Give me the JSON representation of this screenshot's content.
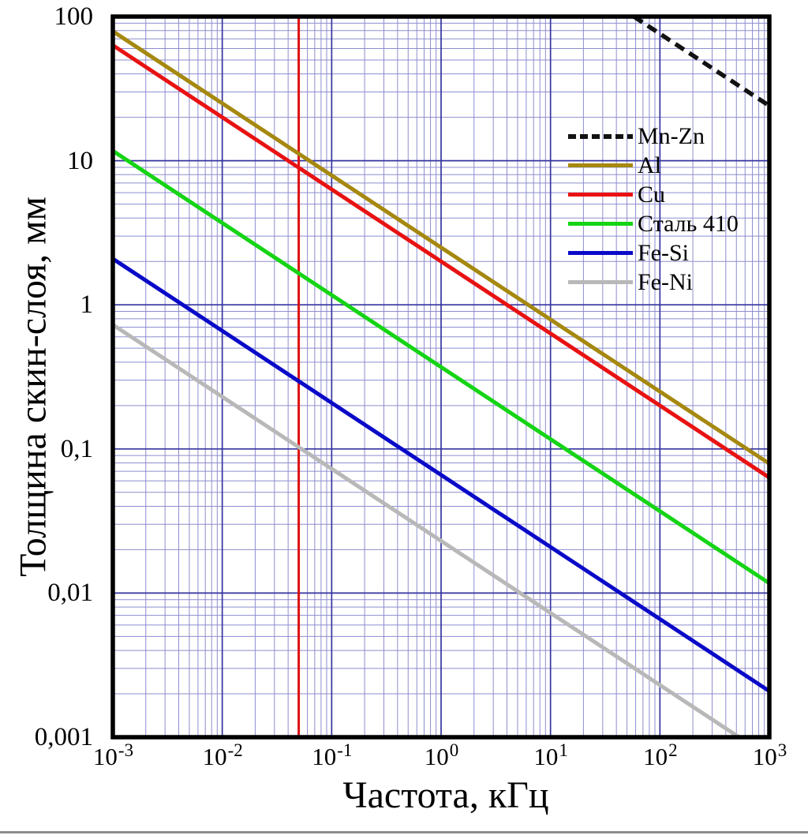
{
  "figure": {
    "background": "#ffffff",
    "x_axis": {
      "title": "Частота, кГц",
      "scale": "log",
      "ticks": [
        {
          "base": "10",
          "exp": "-3",
          "value": 0.001
        },
        {
          "base": "10",
          "exp": "-2",
          "value": 0.01
        },
        {
          "base": "10",
          "exp": "-1",
          "value": 0.1
        },
        {
          "base": "10",
          "exp": "0",
          "value": 1
        },
        {
          "base": "10",
          "exp": "1",
          "value": 10
        },
        {
          "base": "10",
          "exp": "2",
          "value": 100
        },
        {
          "base": "10",
          "exp": "3",
          "value": 1000
        }
      ]
    },
    "y_axis": {
      "title": "Толщина скин-слоя, мм",
      "scale": "log",
      "ticks": [
        {
          "label": "100",
          "value": 100
        },
        {
          "label": "10",
          "value": 10
        },
        {
          "label": "1",
          "value": 1
        },
        {
          "label": "0,1",
          "value": 0.1
        },
        {
          "label": "0,01",
          "value": 0.01
        },
        {
          "label": "0,001",
          "value": 0.001
        }
      ]
    }
  },
  "chart_data": {
    "type": "line",
    "x_scale": "log",
    "y_scale": "log",
    "x_range_kHz": [
      0.001,
      1000
    ],
    "y_range_mm": [
      0.001,
      100
    ],
    "xlabel": "Частота, кГц",
    "ylabel": "Толщина скин-слоя, мм",
    "grid": {
      "major_color": "#3434a0",
      "minor_color": "#8d8dd0",
      "major_width": 1.7,
      "minor_width": 1
    },
    "frame_color": "#000000",
    "legend_position": "upper-right-inside",
    "model": "delta_mm = k * f_kHz^slope",
    "series": [
      {
        "name": "Mn-Zn",
        "color": "#121212",
        "style": "dashed",
        "k_mm_at_1kHz": 760,
        "slope": -0.5,
        "points_f_kHz_delta_mm": [
          [
            57.6,
            100
          ],
          [
            100,
            76
          ],
          [
            1000,
            24
          ]
        ]
      },
      {
        "name": "Al",
        "color": "#a5880f",
        "style": "solid",
        "k_mm_at_1kHz": 2.5,
        "slope": -0.5,
        "points_f_kHz_delta_mm": [
          [
            0.001,
            79
          ],
          [
            0.05,
            11.2
          ],
          [
            1,
            2.5
          ],
          [
            1000,
            0.079
          ]
        ]
      },
      {
        "name": "Cu",
        "color": "#e81212",
        "style": "solid",
        "k_mm_at_1kHz": 2.0,
        "slope": -0.5,
        "points_f_kHz_delta_mm": [
          [
            0.001,
            63
          ],
          [
            0.05,
            8.9
          ],
          [
            1,
            2.0
          ],
          [
            1000,
            0.063
          ]
        ]
      },
      {
        "name": "Сталь 410",
        "color": "#15d415",
        "style": "solid",
        "k_mm_at_1kHz": 0.37,
        "slope": -0.5,
        "points_f_kHz_delta_mm": [
          [
            0.001,
            11.7
          ],
          [
            0.05,
            1.65
          ],
          [
            1,
            0.37
          ],
          [
            1000,
            0.0117
          ]
        ]
      },
      {
        "name": "Fe-Si",
        "color": "#0a0ac8",
        "style": "solid",
        "k_mm_at_1kHz": 0.066,
        "slope": -0.5,
        "points_f_kHz_delta_mm": [
          [
            0.001,
            2.09
          ],
          [
            0.05,
            0.295
          ],
          [
            1,
            0.066
          ],
          [
            1000,
            0.0021
          ]
        ]
      },
      {
        "name": "Fe-Ni",
        "color": "#b8b8b8",
        "style": "solid",
        "k_mm_at_1kHz": 0.023,
        "slope": -0.5,
        "points_f_kHz_delta_mm": [
          [
            0.001,
            0.73
          ],
          [
            0.05,
            0.103
          ],
          [
            1,
            0.023
          ],
          [
            529,
            0.001
          ]
        ]
      }
    ],
    "annotations": [
      {
        "type": "vline",
        "x_kHz": 0.05,
        "color": "#dd0f0f",
        "width": 3
      }
    ]
  }
}
